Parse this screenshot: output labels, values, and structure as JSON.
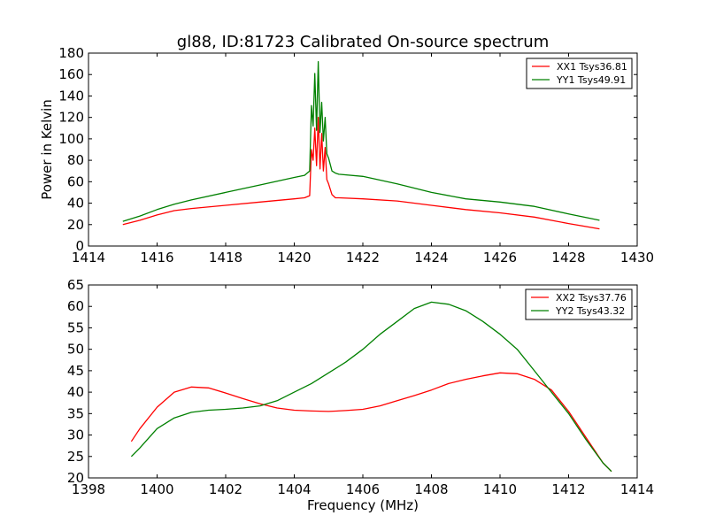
{
  "figure": {
    "title": "gl88, ID:81723 Calibrated On-source spectrum",
    "xlabel": "Frequency (MHz)"
  },
  "chart_data": [
    {
      "type": "line",
      "title": "gl88, ID:81723 Calibrated On-source spectrum",
      "xlabel": "",
      "ylabel": "Power in Kelvin",
      "xlim": [
        1414,
        1430
      ],
      "ylim": [
        0,
        180
      ],
      "xticks": [
        1414,
        1416,
        1418,
        1420,
        1422,
        1424,
        1426,
        1428,
        1430
      ],
      "yticks": [
        0,
        20,
        40,
        60,
        80,
        100,
        120,
        140,
        160,
        180
      ],
      "grid": false,
      "legend_position": "top-right",
      "series": [
        {
          "name": "XX1 Tsys36.81",
          "color": "#ff0000",
          "x": [
            1415.0,
            1415.5,
            1416.0,
            1416.5,
            1417.0,
            1418.0,
            1419.0,
            1420.0,
            1420.3,
            1420.45,
            1420.5,
            1420.55,
            1420.6,
            1420.65,
            1420.7,
            1420.75,
            1420.8,
            1420.85,
            1420.9,
            1420.95,
            1421.0,
            1421.1,
            1421.2,
            1421.3,
            1422.0,
            1423.0,
            1424.0,
            1425.0,
            1426.0,
            1427.0,
            1428.0,
            1428.9
          ],
          "y": [
            20,
            24,
            29,
            33,
            35,
            38,
            41,
            44,
            45,
            47,
            90,
            80,
            110,
            75,
            120,
            72,
            105,
            70,
            92,
            62,
            58,
            48,
            45,
            45,
            44,
            42,
            38,
            34,
            31,
            27,
            21,
            16
          ]
        },
        {
          "name": "YY1 Tsys49.91",
          "color": "#008000",
          "x": [
            1415.0,
            1415.5,
            1416.0,
            1416.5,
            1417.0,
            1418.0,
            1419.0,
            1420.0,
            1420.3,
            1420.45,
            1420.5,
            1420.55,
            1420.6,
            1420.65,
            1420.7,
            1420.75,
            1420.8,
            1420.85,
            1420.9,
            1420.95,
            1421.0,
            1421.1,
            1421.2,
            1421.3,
            1422.0,
            1423.0,
            1424.0,
            1425.0,
            1426.0,
            1427.0,
            1428.0,
            1428.9
          ],
          "y": [
            23,
            28,
            34,
            39,
            43,
            50,
            57,
            64,
            66,
            70,
            131,
            112,
            161,
            108,
            172,
            106,
            134,
            98,
            120,
            86,
            82,
            70,
            68,
            67,
            65,
            58,
            50,
            44,
            41,
            37,
            30,
            24
          ]
        }
      ]
    },
    {
      "type": "line",
      "title": "",
      "xlabel": "Frequency (MHz)",
      "ylabel": "",
      "xlim": [
        1398,
        1414
      ],
      "ylim": [
        20,
        65
      ],
      "xticks": [
        1398,
        1400,
        1402,
        1404,
        1406,
        1408,
        1410,
        1412,
        1414
      ],
      "yticks": [
        20,
        25,
        30,
        35,
        40,
        45,
        50,
        55,
        60,
        65
      ],
      "grid": false,
      "legend_position": "top-right",
      "series": [
        {
          "name": "XX2 Tsys37.76",
          "color": "#ff0000",
          "x": [
            1399.25,
            1399.5,
            1400.0,
            1400.5,
            1401.0,
            1401.5,
            1402.0,
            1402.5,
            1403.0,
            1403.5,
            1404.0,
            1404.5,
            1405.0,
            1405.5,
            1406.0,
            1406.5,
            1407.0,
            1407.5,
            1408.0,
            1408.5,
            1409.0,
            1409.5,
            1410.0,
            1410.5,
            1411.0,
            1411.5,
            1412.0,
            1412.5,
            1413.0,
            1413.25
          ],
          "y": [
            28.5,
            31.5,
            36.5,
            40.0,
            41.2,
            41.0,
            39.8,
            38.5,
            37.3,
            36.3,
            35.8,
            35.6,
            35.5,
            35.7,
            36.0,
            36.8,
            38.0,
            39.2,
            40.5,
            42.0,
            43.0,
            43.8,
            44.5,
            44.3,
            43.0,
            40.5,
            35.5,
            29.5,
            23.5,
            21.5
          ]
        },
        {
          "name": "YY2 Tsys43.32",
          "color": "#008000",
          "x": [
            1399.25,
            1399.5,
            1400.0,
            1400.5,
            1401.0,
            1401.5,
            1402.0,
            1402.5,
            1403.0,
            1403.5,
            1404.0,
            1404.5,
            1405.0,
            1405.5,
            1406.0,
            1406.5,
            1407.0,
            1407.5,
            1408.0,
            1408.5,
            1409.0,
            1409.5,
            1410.0,
            1410.5,
            1411.0,
            1411.5,
            1412.0,
            1412.5,
            1413.0,
            1413.25
          ],
          "y": [
            25.0,
            27.0,
            31.5,
            34.0,
            35.3,
            35.8,
            36.0,
            36.3,
            36.8,
            38.0,
            40.0,
            42.0,
            44.5,
            47.0,
            50.0,
            53.5,
            56.5,
            59.5,
            61.0,
            60.5,
            59.0,
            56.5,
            53.5,
            50.0,
            45.0,
            40.0,
            35.0,
            29.0,
            23.5,
            21.5
          ]
        }
      ]
    }
  ]
}
